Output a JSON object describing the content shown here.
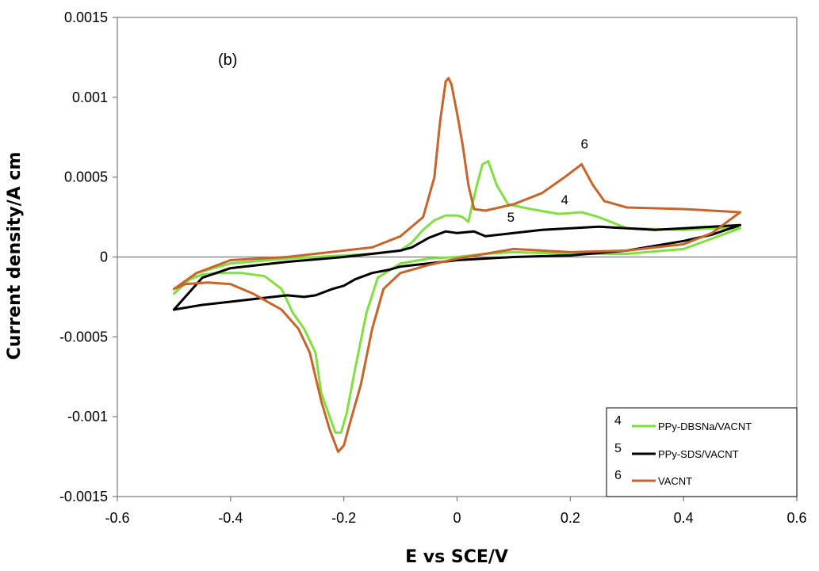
{
  "chart_data": {
    "type": "line",
    "panel_label": "(b)",
    "xlabel": "E vs SCE/V",
    "ylabel": "Current density/A cm",
    "xlim": [
      -0.6,
      0.6
    ],
    "ylim": [
      -0.0015,
      0.0015
    ],
    "x_ticks": [
      "-0.6",
      "-0.4",
      "-0.2",
      "0",
      "0.2",
      "0.4",
      "0.6"
    ],
    "y_ticks": [
      "0.0015",
      "0.001",
      "0.0005",
      "0",
      "-0.0005",
      "-0.001",
      "-0.0015"
    ],
    "grid": false,
    "legend_position": "bottom-right",
    "series": [
      {
        "name": "PPy-DBSNa/VACNT",
        "number": "4",
        "color": "#7fe040",
        "points": [
          [
            -0.5,
            -0.00023
          ],
          [
            -0.48,
            -0.00015
          ],
          [
            -0.45,
            -0.00011
          ],
          [
            -0.42,
            -0.0001
          ],
          [
            -0.38,
            -0.0001
          ],
          [
            -0.34,
            -0.00012
          ],
          [
            -0.31,
            -0.0002
          ],
          [
            -0.29,
            -0.00035
          ],
          [
            -0.27,
            -0.00045
          ],
          [
            -0.25,
            -0.0006
          ],
          [
            -0.24,
            -0.00085
          ],
          [
            -0.225,
            -0.001
          ],
          [
            -0.215,
            -0.0011
          ],
          [
            -0.205,
            -0.0011
          ],
          [
            -0.195,
            -0.00098
          ],
          [
            -0.18,
            -0.0007
          ],
          [
            -0.16,
            -0.00035
          ],
          [
            -0.14,
            -0.00013
          ],
          [
            -0.1,
            -4e-05
          ],
          [
            -0.05,
            -1e-05
          ],
          [
            0.0,
            0.0
          ],
          [
            0.05,
            2e-05
          ],
          [
            0.1,
            3e-05
          ],
          [
            0.2,
            2e-05
          ],
          [
            0.3,
            2e-05
          ],
          [
            0.4,
            5e-05
          ],
          [
            0.5,
            0.00018
          ],
          [
            0.45,
            0.00018
          ],
          [
            0.4,
            0.00017
          ],
          [
            0.3,
            0.00018
          ],
          [
            0.25,
            0.00025
          ],
          [
            0.22,
            0.00028
          ],
          [
            0.18,
            0.00027
          ],
          [
            0.13,
            0.0003
          ],
          [
            0.09,
            0.00033
          ],
          [
            0.07,
            0.00045
          ],
          [
            0.055,
            0.0006
          ],
          [
            0.045,
            0.00058
          ],
          [
            0.035,
            0.00045
          ],
          [
            0.025,
            0.0003
          ],
          [
            0.02,
            0.00022
          ],
          [
            0.01,
            0.00025
          ],
          [
            0.0,
            0.00026
          ],
          [
            -0.02,
            0.00026
          ],
          [
            -0.04,
            0.00023
          ],
          [
            -0.06,
            0.00017
          ],
          [
            -0.08,
            9e-05
          ],
          [
            -0.1,
            4e-05
          ],
          [
            -0.15,
            2e-05
          ],
          [
            -0.2,
            1e-05
          ],
          [
            -0.3,
            -1e-05
          ],
          [
            -0.4,
            -4e-05
          ],
          [
            -0.46,
            -0.0001
          ],
          [
            -0.5,
            -0.00023
          ]
        ]
      },
      {
        "name": "PPy-SDS/VACNT",
        "number": "5",
        "color": "#000000",
        "points": [
          [
            -0.5,
            -0.00033
          ],
          [
            -0.45,
            -0.0003
          ],
          [
            -0.4,
            -0.00028
          ],
          [
            -0.35,
            -0.00026
          ],
          [
            -0.3,
            -0.00024
          ],
          [
            -0.27,
            -0.00025
          ],
          [
            -0.25,
            -0.00024
          ],
          [
            -0.22,
            -0.0002
          ],
          [
            -0.2,
            -0.00018
          ],
          [
            -0.18,
            -0.00014
          ],
          [
            -0.15,
            -0.0001
          ],
          [
            -0.12,
            -8e-05
          ],
          [
            -0.1,
            -6e-05
          ],
          [
            -0.05,
            -4e-05
          ],
          [
            0.0,
            -2e-05
          ],
          [
            0.05,
            -1e-05
          ],
          [
            0.1,
            0.0
          ],
          [
            0.2,
            1e-05
          ],
          [
            0.3,
            4e-05
          ],
          [
            0.4,
            0.0001
          ],
          [
            0.45,
            0.00014
          ],
          [
            0.5,
            0.0002
          ],
          [
            0.45,
            0.00019
          ],
          [
            0.4,
            0.00018
          ],
          [
            0.35,
            0.00017
          ],
          [
            0.3,
            0.00018
          ],
          [
            0.25,
            0.00019
          ],
          [
            0.2,
            0.00018
          ],
          [
            0.15,
            0.00017
          ],
          [
            0.1,
            0.00015
          ],
          [
            0.05,
            0.00013
          ],
          [
            0.03,
            0.00016
          ],
          [
            0.0,
            0.00015
          ],
          [
            -0.02,
            0.00016
          ],
          [
            -0.05,
            0.00012
          ],
          [
            -0.08,
            6e-05
          ],
          [
            -0.1,
            4e-05
          ],
          [
            -0.15,
            2e-05
          ],
          [
            -0.2,
            0.0
          ],
          [
            -0.3,
            -3e-05
          ],
          [
            -0.4,
            -7e-05
          ],
          [
            -0.45,
            -0.00013
          ],
          [
            -0.5,
            -0.00033
          ]
        ]
      },
      {
        "name": "VACNT",
        "number": "6",
        "color": "#c8642a",
        "points": [
          [
            -0.5,
            -0.0002
          ],
          [
            -0.48,
            -0.00017
          ],
          [
            -0.44,
            -0.00016
          ],
          [
            -0.4,
            -0.00017
          ],
          [
            -0.36,
            -0.00023
          ],
          [
            -0.31,
            -0.00033
          ],
          [
            -0.28,
            -0.00045
          ],
          [
            -0.26,
            -0.0006
          ],
          [
            -0.24,
            -0.0009
          ],
          [
            -0.225,
            -0.00108
          ],
          [
            -0.21,
            -0.00122
          ],
          [
            -0.2,
            -0.00118
          ],
          [
            -0.19,
            -0.00105
          ],
          [
            -0.17,
            -0.0008
          ],
          [
            -0.15,
            -0.00045
          ],
          [
            -0.13,
            -0.0002
          ],
          [
            -0.1,
            -0.0001
          ],
          [
            -0.05,
            -5e-05
          ],
          [
            0.0,
            -1e-05
          ],
          [
            0.05,
            2e-05
          ],
          [
            0.1,
            5e-05
          ],
          [
            0.15,
            4e-05
          ],
          [
            0.2,
            3e-05
          ],
          [
            0.3,
            4e-05
          ],
          [
            0.4,
            8e-05
          ],
          [
            0.45,
            0.00015
          ],
          [
            0.5,
            0.00028
          ],
          [
            0.45,
            0.00029
          ],
          [
            0.4,
            0.0003
          ],
          [
            0.3,
            0.00031
          ],
          [
            0.26,
            0.00035
          ],
          [
            0.24,
            0.00045
          ],
          [
            0.22,
            0.00058
          ],
          [
            0.19,
            0.0005
          ],
          [
            0.15,
            0.0004
          ],
          [
            0.1,
            0.00033
          ],
          [
            0.05,
            0.00029
          ],
          [
            0.03,
            0.0003
          ],
          [
            0.02,
            0.00045
          ],
          [
            0.01,
            0.0007
          ],
          [
            0.0,
            0.0009
          ],
          [
            -0.01,
            0.00108
          ],
          [
            -0.015,
            0.00112
          ],
          [
            -0.02,
            0.0011
          ],
          [
            -0.03,
            0.00085
          ],
          [
            -0.04,
            0.0005
          ],
          [
            -0.06,
            0.00025
          ],
          [
            -0.1,
            0.00013
          ],
          [
            -0.15,
            6e-05
          ],
          [
            -0.2,
            4e-05
          ],
          [
            -0.3,
            0.0
          ],
          [
            -0.4,
            -2e-05
          ],
          [
            -0.46,
            -0.0001
          ],
          [
            -0.5,
            -0.0002
          ]
        ]
      }
    ],
    "annotations": [
      {
        "text": "6",
        "x": 0.225,
        "y": 0.00068
      },
      {
        "text": "4",
        "x": 0.19,
        "y": 0.00033
      },
      {
        "text": "5",
        "x": 0.095,
        "y": 0.00022
      }
    ]
  }
}
